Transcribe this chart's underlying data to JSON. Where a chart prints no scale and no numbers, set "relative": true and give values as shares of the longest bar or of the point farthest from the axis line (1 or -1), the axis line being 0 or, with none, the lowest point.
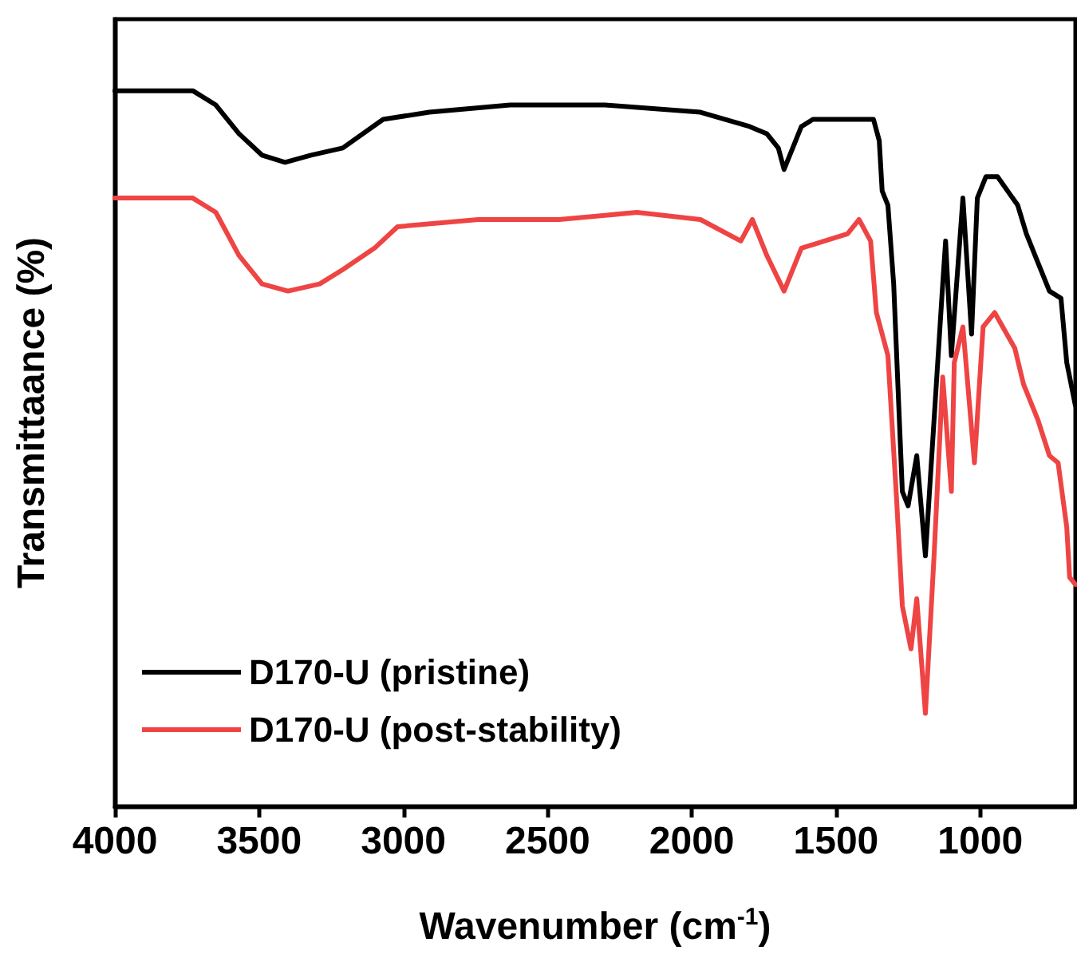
{
  "chart_data": {
    "type": "line",
    "xlabel": "Wavenumber (cm$^{-1}$)",
    "ylabel": "Transmittaance (%)",
    "relative": true,
    "legend": "bottom left",
    "marker": "none",
    "xlim": [
      4000,
      670
    ],
    "xticks": [
      4000,
      3500,
      3000,
      2500,
      2000,
      1500,
      1000
    ],
    "series": [
      {
        "name": "D170-U (pristine)",
        "color": "#000000",
        "x": [
          4000,
          3730,
          3650,
          3570,
          3490,
          3410,
          3320,
          3210,
          3070,
          2910,
          2630,
          2300,
          1970,
          1800,
          1740,
          1700,
          1680,
          1650,
          1620,
          1580,
          1530,
          1420,
          1370,
          1350,
          1340,
          1320,
          1300,
          1270,
          1250,
          1220,
          1190,
          1160,
          1130,
          1120,
          1100,
          1060,
          1030,
          1010,
          980,
          940,
          870,
          840,
          800,
          760,
          720,
          700,
          670
        ],
        "values": [
          1.0,
          1.0,
          0.98,
          0.94,
          0.91,
          0.9,
          0.91,
          0.92,
          0.96,
          0.97,
          0.98,
          0.98,
          0.97,
          0.95,
          0.94,
          0.92,
          0.89,
          0.92,
          0.95,
          0.96,
          0.96,
          0.96,
          0.96,
          0.93,
          0.86,
          0.84,
          0.73,
          0.44,
          0.42,
          0.49,
          0.35,
          0.54,
          0.73,
          0.79,
          0.63,
          0.85,
          0.66,
          0.85,
          0.88,
          0.88,
          0.84,
          0.8,
          0.76,
          0.72,
          0.71,
          0.62,
          0.56
        ]
      },
      {
        "name": "D170-U (post-stability)",
        "color": "#ef4444",
        "x": [
          4000,
          3730,
          3650,
          3570,
          3490,
          3400,
          3290,
          3210,
          3100,
          3020,
          2740,
          2460,
          2190,
          1970,
          1830,
          1790,
          1740,
          1680,
          1620,
          1540,
          1460,
          1420,
          1380,
          1360,
          1320,
          1290,
          1270,
          1240,
          1220,
          1190,
          1160,
          1130,
          1100,
          1090,
          1060,
          1020,
          990,
          950,
          880,
          850,
          800,
          760,
          730,
          700,
          690,
          670
        ],
        "values": [
          0.85,
          0.85,
          0.83,
          0.77,
          0.73,
          0.72,
          0.73,
          0.75,
          0.78,
          0.81,
          0.82,
          0.82,
          0.83,
          0.82,
          0.79,
          0.82,
          0.77,
          0.72,
          0.78,
          0.79,
          0.8,
          0.82,
          0.79,
          0.69,
          0.63,
          0.43,
          0.28,
          0.22,
          0.29,
          0.13,
          0.35,
          0.6,
          0.44,
          0.62,
          0.67,
          0.48,
          0.67,
          0.69,
          0.64,
          0.59,
          0.54,
          0.49,
          0.48,
          0.39,
          0.32,
          0.31
        ]
      }
    ]
  }
}
